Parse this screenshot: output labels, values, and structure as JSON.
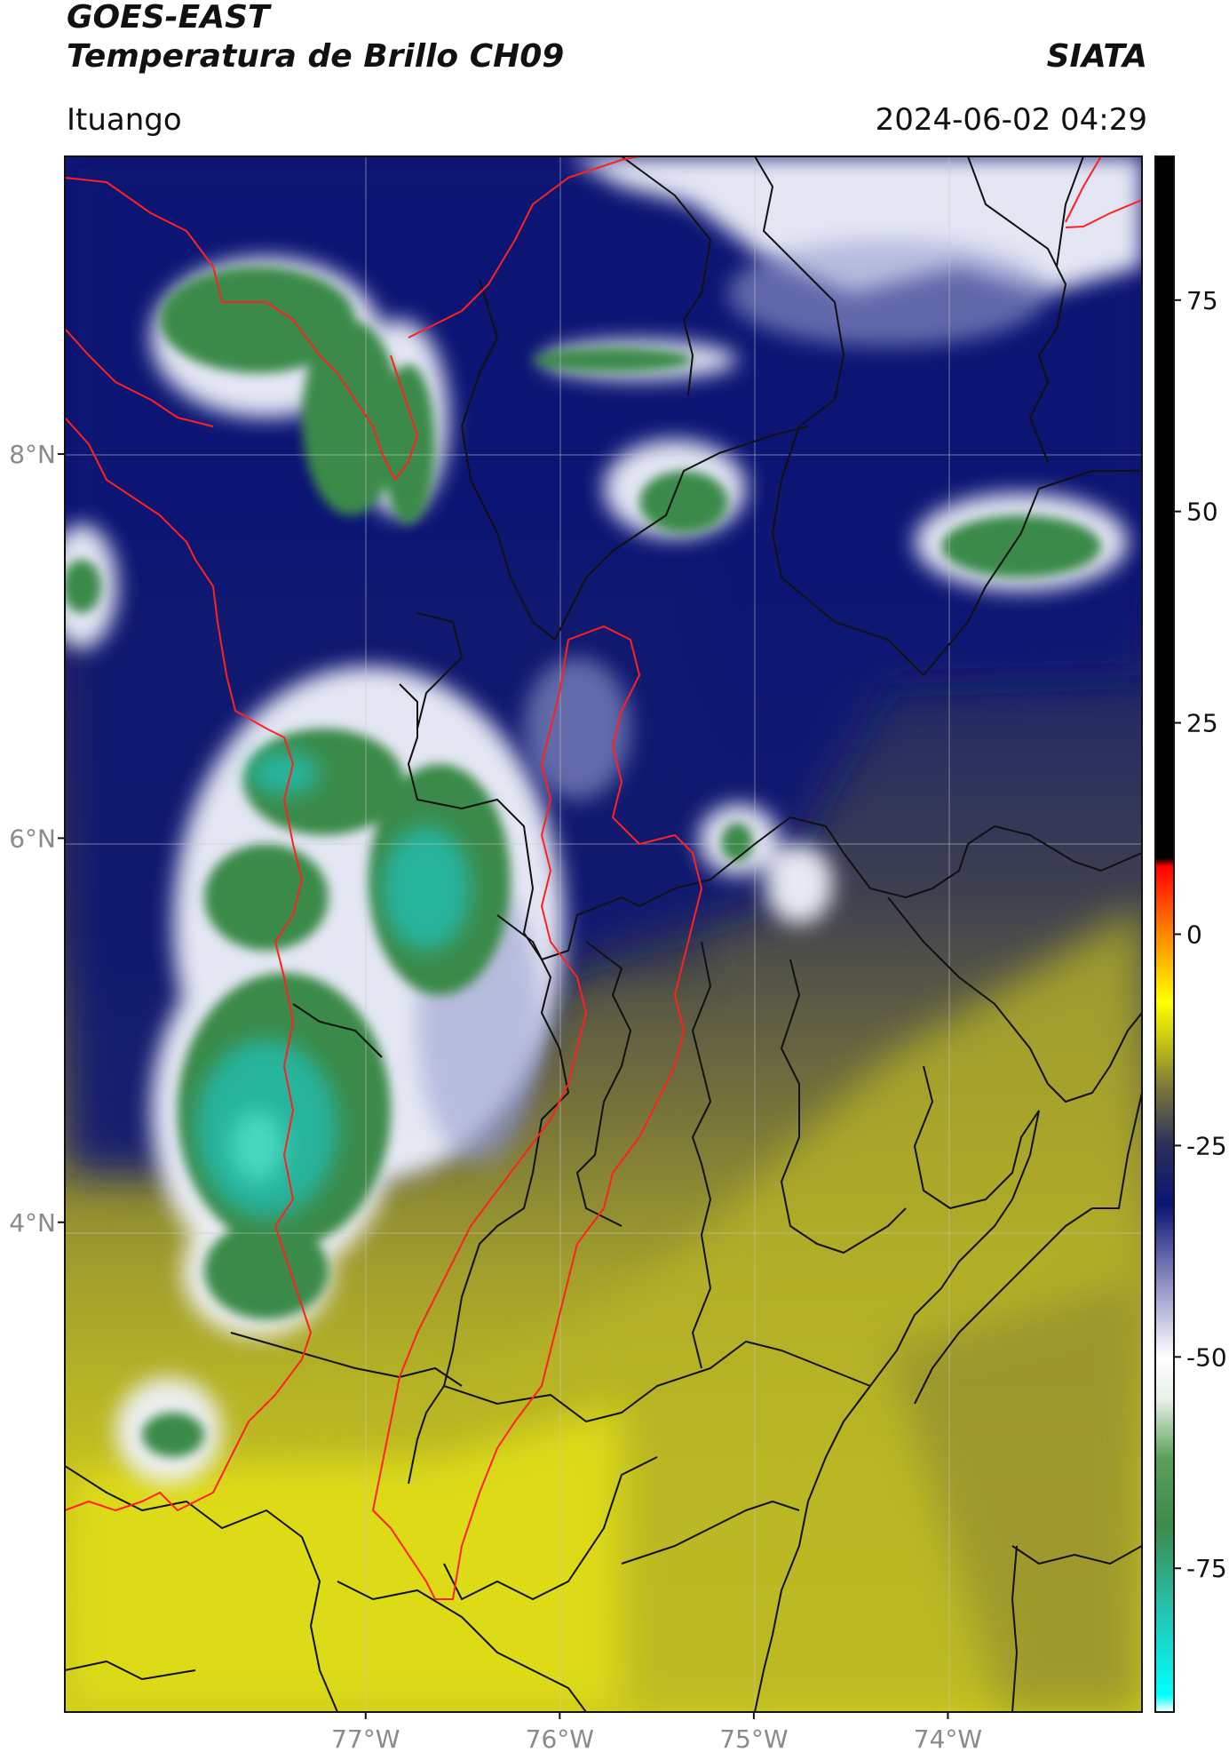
{
  "header": {
    "title_line1": "GOES-EAST",
    "title_line2": "Temperatura de Brillo CH09",
    "brand": "SIATA",
    "region": "Ituango",
    "timestamp": "2024-06-02 04:29"
  },
  "map": {
    "lon_range": [
      -78.55,
      -73.0
    ],
    "lat_range": [
      1.45,
      9.55
    ],
    "lon_ticks": [
      {
        "value": -77,
        "label": "77°W"
      },
      {
        "value": -76,
        "label": "76°W"
      },
      {
        "value": -75,
        "label": "75°W"
      },
      {
        "value": -74,
        "label": "74°W"
      }
    ],
    "lat_ticks": [
      {
        "value": 8,
        "label": "8°N"
      },
      {
        "value": 6,
        "label": "6°N"
      },
      {
        "value": 4,
        "label": "4°N"
      }
    ],
    "colors": {
      "cold_green": "#3d8a4a",
      "teal": "#26c3b0",
      "navy": "#0a1473",
      "warm_olive": "#807c32",
      "yellow": "#e4e20e",
      "outline_country": "#111111",
      "outline_region": "#ff0000"
    }
  },
  "colorbar": {
    "min": -92,
    "max": 92,
    "ticks": [
      {
        "value": 75,
        "label": "75"
      },
      {
        "value": 50,
        "label": "50"
      },
      {
        "value": 25,
        "label": "25"
      },
      {
        "value": 0,
        "label": "0"
      },
      {
        "value": -25,
        "label": "-25"
      },
      {
        "value": -50,
        "label": "-50"
      },
      {
        "value": -75,
        "label": "-75"
      }
    ],
    "stops": [
      {
        "value": -92,
        "color": "#ffffff"
      },
      {
        "value": -90,
        "color": "#00ffff"
      },
      {
        "value": -80,
        "color": "#26c3b0"
      },
      {
        "value": -70,
        "color": "#3d8a4a"
      },
      {
        "value": -62,
        "color": "#5aa05a"
      },
      {
        "value": -55,
        "color": "#e8f0e8"
      },
      {
        "value": -50,
        "color": "#ffffff"
      },
      {
        "value": -42,
        "color": "#9999cc"
      },
      {
        "value": -32,
        "color": "#0a1473"
      },
      {
        "value": -25,
        "color": "#2a2f5c"
      },
      {
        "value": -18,
        "color": "#7c7a38"
      },
      {
        "value": -12,
        "color": "#cfcf10"
      },
      {
        "value": -8,
        "color": "#ffff00"
      },
      {
        "value": 0,
        "color": "#ff8800"
      },
      {
        "value": 8,
        "color": "#ff0000"
      },
      {
        "value": 9,
        "color": "#000000"
      },
      {
        "value": 92,
        "color": "#000000"
      }
    ]
  }
}
